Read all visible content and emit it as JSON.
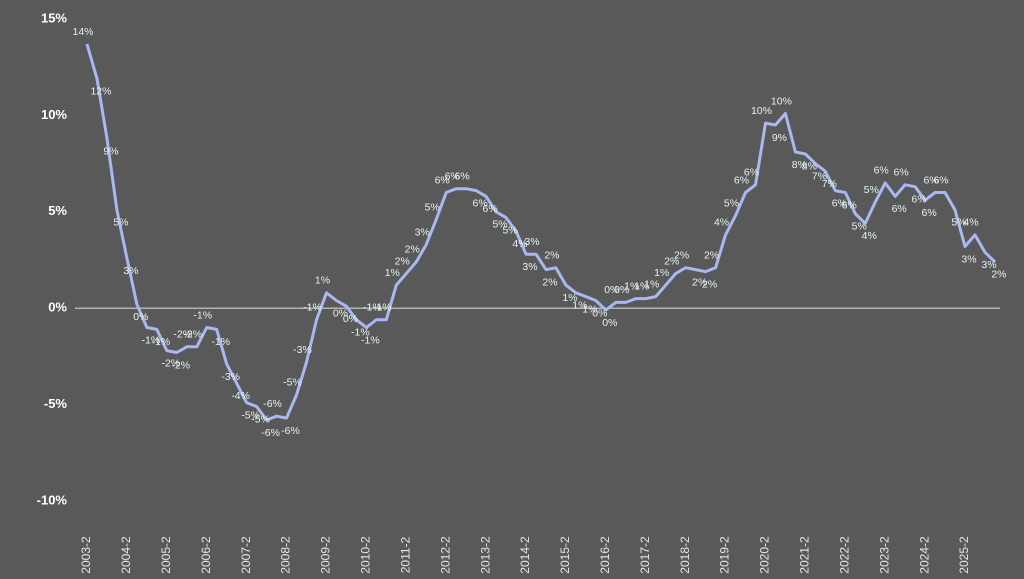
{
  "chart_data": {
    "type": "line",
    "categories": [
      "2003-2",
      null,
      null,
      null,
      "2004-2",
      null,
      null,
      null,
      "2005-2",
      null,
      null,
      null,
      "2006-2",
      null,
      null,
      null,
      "2007-2",
      null,
      null,
      null,
      "2008-2",
      null,
      null,
      null,
      "2009-2",
      null,
      null,
      null,
      "2010-2",
      null,
      null,
      null,
      "2011-2",
      null,
      null,
      null,
      "2012-2",
      null,
      null,
      null,
      "2013-2",
      null,
      null,
      null,
      "2014-2",
      null,
      null,
      null,
      "2015-2",
      null,
      null,
      null,
      "2016-2",
      null,
      null,
      null,
      "2017-2",
      null,
      null,
      null,
      "2018-2",
      null,
      null,
      null,
      "2019-2",
      null,
      null,
      null,
      "2020-2",
      null,
      null,
      null,
      "2021-2",
      null,
      null,
      null,
      "2022-2",
      null,
      null,
      null,
      "2023-2",
      null,
      null,
      null,
      "2024-2",
      null,
      null,
      null,
      "2025-2",
      null,
      null,
      null
    ],
    "values": [
      13.7,
      11.9,
      8.8,
      5.1,
      2.6,
      0.2,
      -1.0,
      -1.1,
      -2.2,
      -2.3,
      -2.0,
      -2.0,
      -1.0,
      -1.1,
      -2.9,
      -3.9,
      -4.9,
      -5.1,
      -5.8,
      -5.6,
      -5.7,
      -4.5,
      -2.8,
      -0.6,
      0.8,
      0.4,
      0.1,
      -0.6,
      -1.0,
      -0.6,
      -0.6,
      1.2,
      1.8,
      2.4,
      3.3,
      4.6,
      6.0,
      6.2,
      6.2,
      6.1,
      5.8,
      5.0,
      4.7,
      4.0,
      2.8,
      2.8,
      2.0,
      2.1,
      1.2,
      0.8,
      0.6,
      0.4,
      -0.1,
      0.3,
      0.3,
      0.5,
      0.5,
      0.6,
      1.2,
      1.8,
      2.1,
      2.0,
      1.9,
      2.1,
      3.8,
      4.8,
      6.0,
      6.4,
      9.6,
      9.5,
      10.1,
      8.1,
      8.0,
      7.5,
      7.1,
      6.1,
      6.0,
      4.9,
      4.4,
      5.5,
      6.5,
      5.8,
      6.4,
      6.3,
      5.6,
      6.0,
      6.0,
      5.1,
      3.2,
      3.8,
      2.9,
      2.4
    ],
    "value_labels": [
      "14%",
      "12%",
      "9%",
      "5%",
      "3%",
      "0%",
      "-1%",
      "-1%",
      "-2%",
      "-2%",
      "-2%",
      "-2%",
      "-1%",
      "-1%",
      "-3%",
      "-4%",
      "-5%",
      "-5%",
      "-6%",
      "-6%",
      "-6%",
      "-5%",
      "-3%",
      "-1%",
      "1%",
      "0%",
      "0%",
      "-1%",
      "-1%",
      "-1%",
      "-1%",
      "1%",
      "2%",
      "2%",
      "3%",
      "5%",
      "6%",
      "6%",
      "6%",
      "6%",
      "6%",
      "5%",
      "5%",
      "4%",
      "3%",
      "3%",
      "2%",
      "2%",
      "1%",
      "1%",
      "1%",
      "0%",
      "0%",
      "0%",
      "0%",
      "1%",
      "1%",
      "1%",
      "1%",
      "2%",
      "2%",
      "2%",
      "2%",
      "2%",
      "4%",
      "5%",
      "6%",
      "6%",
      "10%",
      "9%",
      "10%",
      "8%",
      "8%",
      "7%",
      "7%",
      "6%",
      "6%",
      "5%",
      "4%",
      "5%",
      "6%",
      "6%",
      "6%",
      "6%",
      "6%",
      "6%",
      "6%",
      "5%",
      "3%",
      "4%",
      "3%",
      "2%"
    ],
    "color": "#a9b8f0",
    "ylim": [
      -10,
      15
    ],
    "yticks": [
      {
        "value": -10,
        "label": "-10%"
      },
      {
        "value": -5,
        "label": "-5%"
      },
      {
        "value": 0,
        "label": "0%"
      },
      {
        "value": 5,
        "label": "5%"
      },
      {
        "value": 10,
        "label": "10%"
      },
      {
        "value": 15,
        "label": "15%"
      }
    ],
    "grid": false
  }
}
